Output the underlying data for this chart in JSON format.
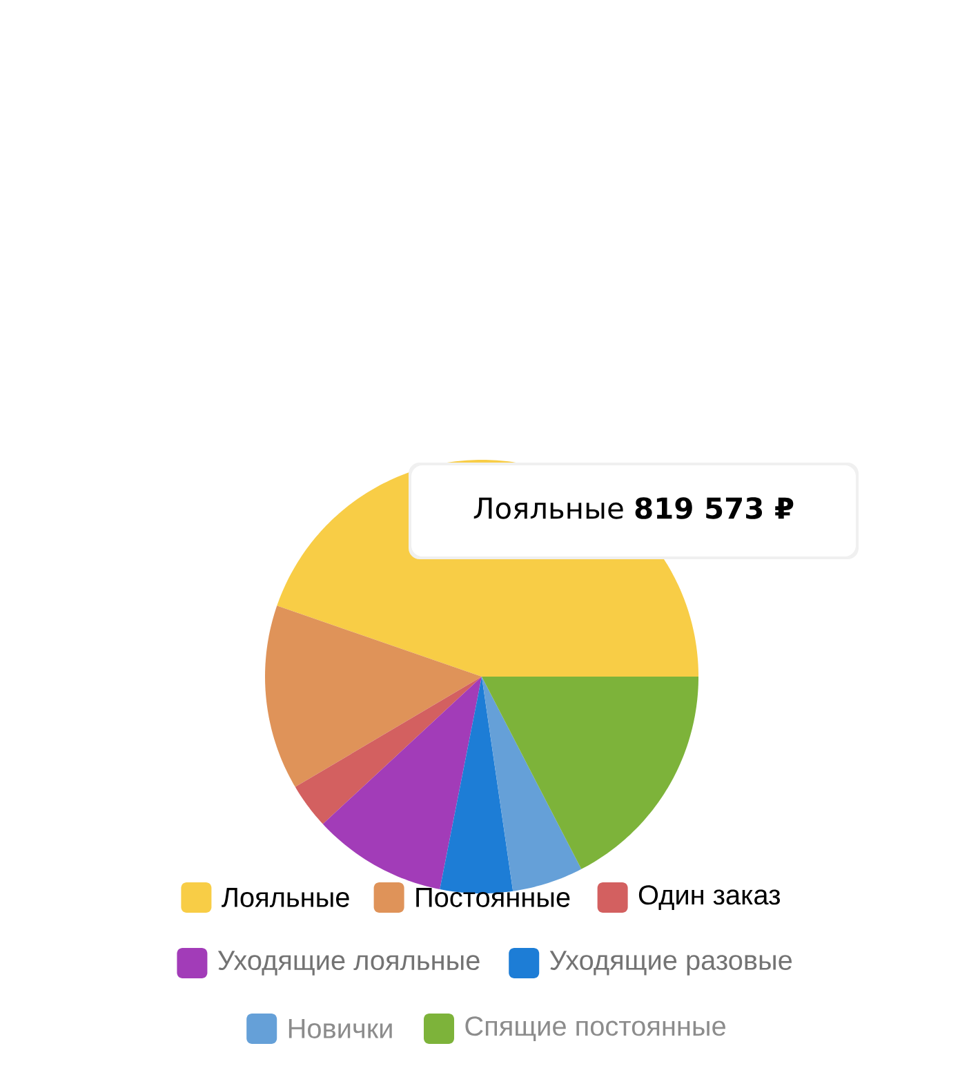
{
  "chart_data": {
    "type": "pie",
    "categories": [
      "Лояльные",
      "Постоянные",
      "Один заказ",
      "Уходящие лояльные",
      "Уходящие разовые",
      "Новички",
      "Спящие постоянные"
    ],
    "values": [
      44.7,
      13.8,
      3.4,
      10,
      5.4,
      5.3,
      17.4
    ],
    "colors": [
      "#f8cd46",
      "#df9359",
      "#d36060",
      "#a23cb8",
      "#1d7dd6",
      "#65a0d8",
      "#7db33a"
    ],
    "legend": "bottom",
    "annotations": [
      "Лояльные   **819 573 ₽**"
    ]
  }
}
